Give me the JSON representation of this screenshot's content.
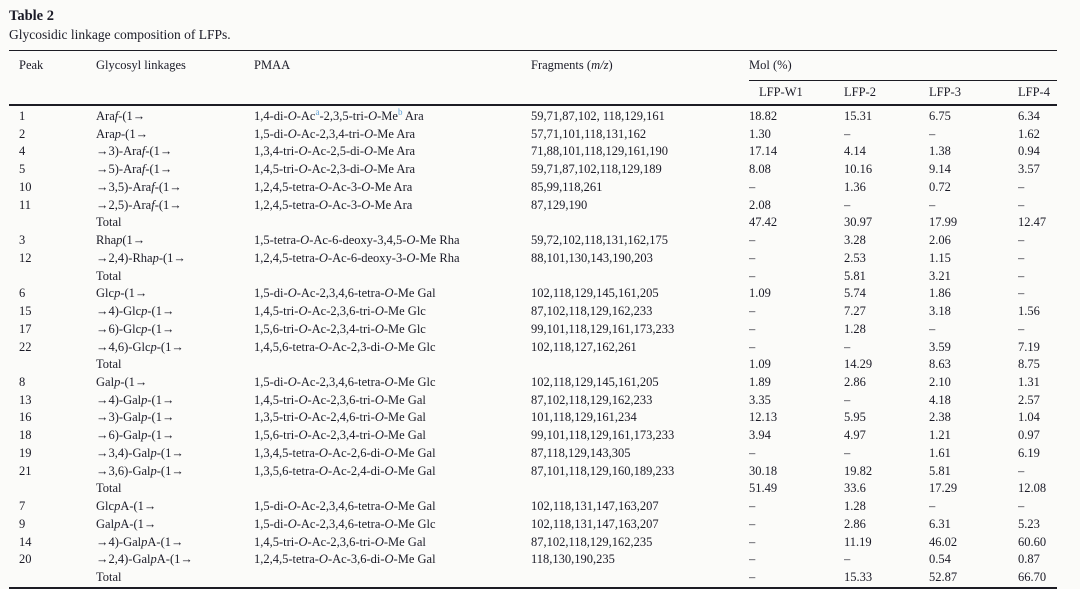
{
  "colors": {
    "text": "#1b1b27",
    "rule": "#1c1c24",
    "superscript_accent": "#5d9fd4",
    "background": "#fbfbf9"
  },
  "page": {
    "title": "Table 2",
    "caption": "Glycosidic linkage composition of LFPs."
  },
  "table": {
    "headers": {
      "peak": "Peak",
      "linkage": "Glycosyl linkages",
      "pmaa": "PMAA",
      "fragments": "Fragments (*m/z*)",
      "mol_group": "Mol (%)",
      "samples": [
        "LFP-W1",
        "LFP-2",
        "LFP-3",
        "LFP-4"
      ]
    },
    "rows": [
      {
        "peak": "1",
        "linkage": "Ara*f*-(1→",
        "pmaa": "1,4-di-*O*-Ac^a^-2,3,5-tri-*O*-Me^b^ Ara",
        "fragments": "59,71,87,102, 118,129,161",
        "lfp_w1": "18.82",
        "lfp_2": "15.31",
        "lfp_3": "6.75",
        "lfp_4": "6.34",
        "is_total": false
      },
      {
        "peak": "2",
        "linkage": "Ara*p*-(1→",
        "pmaa": "1,5-di-*O*-Ac-2,3,4-tri-*O*-Me Ara",
        "fragments": "57,71,101,118,131,162",
        "lfp_w1": "1.30",
        "lfp_2": "–",
        "lfp_3": "–",
        "lfp_4": "1.62",
        "is_total": false
      },
      {
        "peak": "4",
        "linkage": "→3)-Ara*f*-(1→",
        "pmaa": "1,3,4-tri-*O*-Ac-2,5-di-*O*-Me Ara",
        "fragments": "71,88,101,118,129,161,190",
        "lfp_w1": "17.14",
        "lfp_2": "4.14",
        "lfp_3": "1.38",
        "lfp_4": "0.94",
        "is_total": false
      },
      {
        "peak": "5",
        "linkage": "→5)-Ara*f*-(1→",
        "pmaa": "1,4,5-tri-*O*-Ac-2,3-di-*O*-Me Ara",
        "fragments": "59,71,87,102,118,129,189",
        "lfp_w1": "8.08",
        "lfp_2": "10.16",
        "lfp_3": "9.14",
        "lfp_4": "3.57",
        "is_total": false
      },
      {
        "peak": "10",
        "linkage": "→3,5)-Ara*f*-(1→",
        "pmaa": "1,2,4,5-tetra-*O*-Ac-3-*O*-Me Ara",
        "fragments": "85,99,118,261",
        "lfp_w1": "–",
        "lfp_2": "1.36",
        "lfp_3": "0.72",
        "lfp_4": "–",
        "is_total": false
      },
      {
        "peak": "11",
        "linkage": "→2,5)-Ara*f*-(1→",
        "pmaa": "1,2,4,5-tetra-*O*-Ac-3-*O*-Me Ara",
        "fragments": "87,129,190",
        "lfp_w1": "2.08",
        "lfp_2": "–",
        "lfp_3": "–",
        "lfp_4": "–",
        "is_total": false
      },
      {
        "peak": "",
        "linkage": "Total",
        "pmaa": "",
        "fragments": "",
        "lfp_w1": "47.42",
        "lfp_2": "30.97",
        "lfp_3": "17.99",
        "lfp_4": "12.47",
        "is_total": true
      },
      {
        "peak": "3",
        "linkage": "Rha*p*(1→",
        "pmaa": "1,5-tetra-*O*-Ac-6-deoxy-3,4,5-*O*-Me Rha",
        "fragments": "59,72,102,118,131,162,175",
        "lfp_w1": "–",
        "lfp_2": "3.28",
        "lfp_3": "2.06",
        "lfp_4": "–",
        "is_total": false
      },
      {
        "peak": "12",
        "linkage": "→2,4)-Rha*p*-(1→",
        "pmaa": "1,2,4,5-tetra-*O*-Ac-6-deoxy-3-*O*-Me Rha",
        "fragments": "88,101,130,143,190,203",
        "lfp_w1": "–",
        "lfp_2": "2.53",
        "lfp_3": "1.15",
        "lfp_4": "–",
        "is_total": false
      },
      {
        "peak": "",
        "linkage": "Total",
        "pmaa": "",
        "fragments": "",
        "lfp_w1": "–",
        "lfp_2": "5.81",
        "lfp_3": "3.21",
        "lfp_4": "–",
        "is_total": true
      },
      {
        "peak": "6",
        "linkage": "Glc*p*-(1→",
        "pmaa": "1,5-di-*O*-Ac-2,3,4,6-tetra-*O*-Me Gal",
        "fragments": "102,118,129,145,161,205",
        "lfp_w1": "1.09",
        "lfp_2": "5.74",
        "lfp_3": "1.86",
        "lfp_4": "–",
        "is_total": false
      },
      {
        "peak": "15",
        "linkage": "→4)-Glc*p*-(1→",
        "pmaa": "1,4,5-tri-*O*-Ac-2,3,6-tri-*O*-Me Glc",
        "fragments": "87,102,118,129,162,233",
        "lfp_w1": "–",
        "lfp_2": "7.27",
        "lfp_3": "3.18",
        "lfp_4": "1.56",
        "is_total": false
      },
      {
        "peak": "17",
        "linkage": "→6)-Glc*p*-(1→",
        "pmaa": "1,5,6-tri-*O*-Ac-2,3,4-tri-*O*-Me Glc",
        "fragments": "99,101,118,129,161,173,233",
        "lfp_w1": "–",
        "lfp_2": "1.28",
        "lfp_3": "–",
        "lfp_4": "–",
        "is_total": false
      },
      {
        "peak": "22",
        "linkage": "→4,6)-Glc*p*-(1→",
        "pmaa": "1,4,5,6-tetra-*O*-Ac-2,3-di-*O*-Me Glc",
        "fragments": "102,118,127,162,261",
        "lfp_w1": "–",
        "lfp_2": "–",
        "lfp_3": "3.59",
        "lfp_4": "7.19",
        "is_total": false
      },
      {
        "peak": "",
        "linkage": "Total",
        "pmaa": "",
        "fragments": "",
        "lfp_w1": "1.09",
        "lfp_2": "14.29",
        "lfp_3": "8.63",
        "lfp_4": "8.75",
        "is_total": true
      },
      {
        "peak": "8",
        "linkage": "Gal*p*-(1→",
        "pmaa": "1,5-di-*O*-Ac-2,3,4,6-tetra-*O*-Me Glc",
        "fragments": "102,118,129,145,161,205",
        "lfp_w1": "1.89",
        "lfp_2": "2.86",
        "lfp_3": "2.10",
        "lfp_4": "1.31",
        "is_total": false
      },
      {
        "peak": "13",
        "linkage": "→4)-Gal*p*-(1→",
        "pmaa": "1,4,5-tri-*O*-Ac-2,3,6-tri-*O*-Me Gal",
        "fragments": "87,102,118,129,162,233",
        "lfp_w1": "3.35",
        "lfp_2": "–",
        "lfp_3": "4.18",
        "lfp_4": "2.57",
        "is_total": false
      },
      {
        "peak": "16",
        "linkage": "→3)-Gal*p*-(1→",
        "pmaa": "1,3,5-tri-*O*-Ac-2,4,6-tri-*O*-Me Gal",
        "fragments": "101,118,129,161,234",
        "lfp_w1": "12.13",
        "lfp_2": "5.95",
        "lfp_3": "2.38",
        "lfp_4": "1.04",
        "is_total": false
      },
      {
        "peak": "18",
        "linkage": "→6)-Gal*p*-(1→",
        "pmaa": "1,5,6-tri-*O*-Ac-2,3,4-tri-*O*-Me Gal",
        "fragments": "99,101,118,129,161,173,233",
        "lfp_w1": "3.94",
        "lfp_2": "4.97",
        "lfp_3": "1.21",
        "lfp_4": "0.97",
        "is_total": false
      },
      {
        "peak": "19",
        "linkage": "→3,4)-Gal*p*-(1→",
        "pmaa": "1,3,4,5-tetra-*O*-Ac-2,6-di-*O*-Me Gal",
        "fragments": "87,118,129,143,305",
        "lfp_w1": "–",
        "lfp_2": "–",
        "lfp_3": "1.61",
        "lfp_4": "6.19",
        "is_total": false
      },
      {
        "peak": "21",
        "linkage": "→3,6)-Gal*p*-(1→",
        "pmaa": "1,3,5,6-tetra-*O*-Ac-2,4-di-*O*-Me Gal",
        "fragments": "87,101,118,129,160,189,233",
        "lfp_w1": "30.18",
        "lfp_2": "19.82",
        "lfp_3": "5.81",
        "lfp_4": "–",
        "is_total": false
      },
      {
        "peak": "",
        "linkage": "Total",
        "pmaa": "",
        "fragments": "",
        "lfp_w1": "51.49",
        "lfp_2": "33.6",
        "lfp_3": "17.29",
        "lfp_4": "12.08",
        "is_total": true
      },
      {
        "peak": "7",
        "linkage": "Glc*p*A-(1→",
        "pmaa": "1,5-di-*O*-Ac-2,3,4,6-tetra-*O*-Me Gal",
        "fragments": "102,118,131,147,163,207",
        "lfp_w1": "–",
        "lfp_2": "1.28",
        "lfp_3": "–",
        "lfp_4": "–",
        "is_total": false
      },
      {
        "peak": "9",
        "linkage": "Gal*p*A-(1→",
        "pmaa": "1,5-di-*O*-Ac-2,3,4,6-tetra-*O*-Me Glc",
        "fragments": "102,118,131,147,163,207",
        "lfp_w1": "–",
        "lfp_2": "2.86",
        "lfp_3": "6.31",
        "lfp_4": "5.23",
        "is_total": false
      },
      {
        "peak": "14",
        "linkage": "→4)-Gal*p*A-(1→",
        "pmaa": "1,4,5-tri-*O*-Ac-2,3,6-tri-*O*-Me Gal",
        "fragments": "87,102,118,129,162,235",
        "lfp_w1": "–",
        "lfp_2": "11.19",
        "lfp_3": "46.02",
        "lfp_4": "60.60",
        "is_total": false
      },
      {
        "peak": "20",
        "linkage": "→2,4)-Gal*p*A-(1→",
        "pmaa": "1,2,4,5-tetra-*O*-Ac-3,6-di-*O*-Me Gal",
        "fragments": "118,130,190,235",
        "lfp_w1": "–",
        "lfp_2": "–",
        "lfp_3": "0.54",
        "lfp_4": "0.87",
        "is_total": false
      },
      {
        "peak": "",
        "linkage": "Total",
        "pmaa": "",
        "fragments": "",
        "lfp_w1": "–",
        "lfp_2": "15.33",
        "lfp_3": "52.87",
        "lfp_4": "66.70",
        "is_total": true
      }
    ]
  }
}
